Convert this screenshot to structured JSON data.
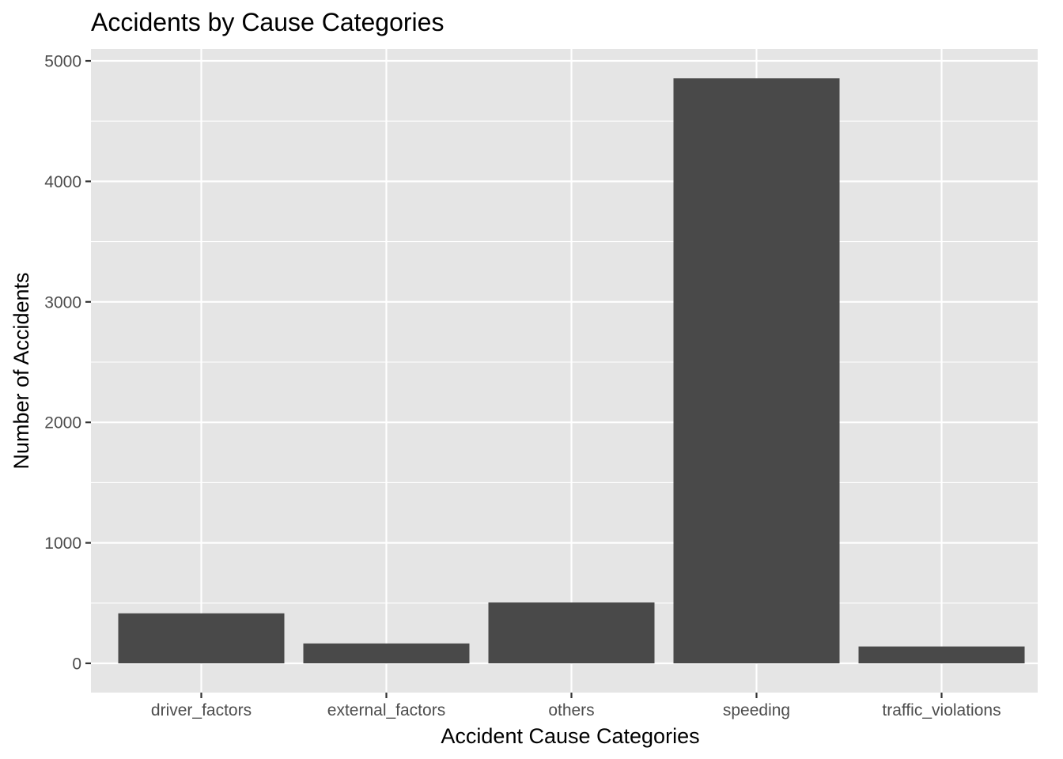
{
  "chart_data": {
    "type": "bar",
    "title": "Accidents by Cause Categories",
    "xlabel": "Accident Cause Categories",
    "ylabel": "Number of Accidents",
    "categories": [
      "driver_factors",
      "external_factors",
      "others",
      "speeding",
      "traffic_violations"
    ],
    "values": [
      415,
      165,
      505,
      4855,
      140
    ],
    "ylim": [
      0,
      5000
    ],
    "yticks": [
      0,
      1000,
      2000,
      3000,
      4000,
      5000
    ],
    "grid": true,
    "legend": "none",
    "colors": {
      "panel": "#e5e5e5",
      "grid": "#ffffff",
      "bar": "#494949"
    }
  }
}
